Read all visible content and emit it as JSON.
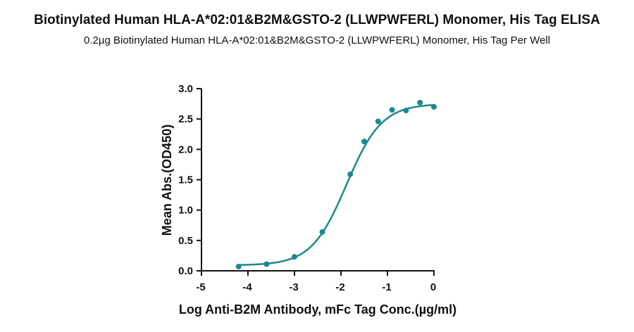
{
  "chart_data": {
    "type": "scatter",
    "title": "Biotinylated Human HLA-A*02:01&B2M&GSTO-2 (LLWPWFERL) Monomer, His Tag ELISA",
    "subtitle": "0.2µg Biotinylated Human HLA-A*02:01&B2M&GSTO-2 (LLWPWFERL) Monomer, His Tag Per Well",
    "xlabel": "Log Anti-B2M Antibody, mFc Tag Conc.(µg/ml)",
    "ylabel": "Mean Abs.(OD450)",
    "xlim": [
      -5,
      0
    ],
    "ylim": [
      0,
      3.0
    ],
    "xticks": [
      "-5",
      "-4",
      "-3",
      "-2",
      "-1",
      "0"
    ],
    "yticks": [
      "0.0",
      "0.5",
      "1.0",
      "1.5",
      "2.0",
      "2.5",
      "3.0"
    ],
    "series": [
      {
        "points": [
          {
            "x": -4.2,
            "y": 0.07
          },
          {
            "x": -3.6,
            "y": 0.11
          },
          {
            "x": -3.0,
            "y": 0.23
          },
          {
            "x": -2.4,
            "y": 0.64
          },
          {
            "x": -1.8,
            "y": 1.59
          },
          {
            "x": -1.5,
            "y": 2.13
          },
          {
            "x": -1.2,
            "y": 2.46
          },
          {
            "x": -0.9,
            "y": 2.65
          },
          {
            "x": -0.6,
            "y": 2.64
          },
          {
            "x": -0.3,
            "y": 2.77
          },
          {
            "x": 0.0,
            "y": 2.7
          }
        ],
        "fit": {
          "bottom": 0.09,
          "top": 2.75,
          "logEC50": -1.88,
          "hill": 1.15
        },
        "color": "#1b8a8a"
      }
    ],
    "grid": false
  }
}
